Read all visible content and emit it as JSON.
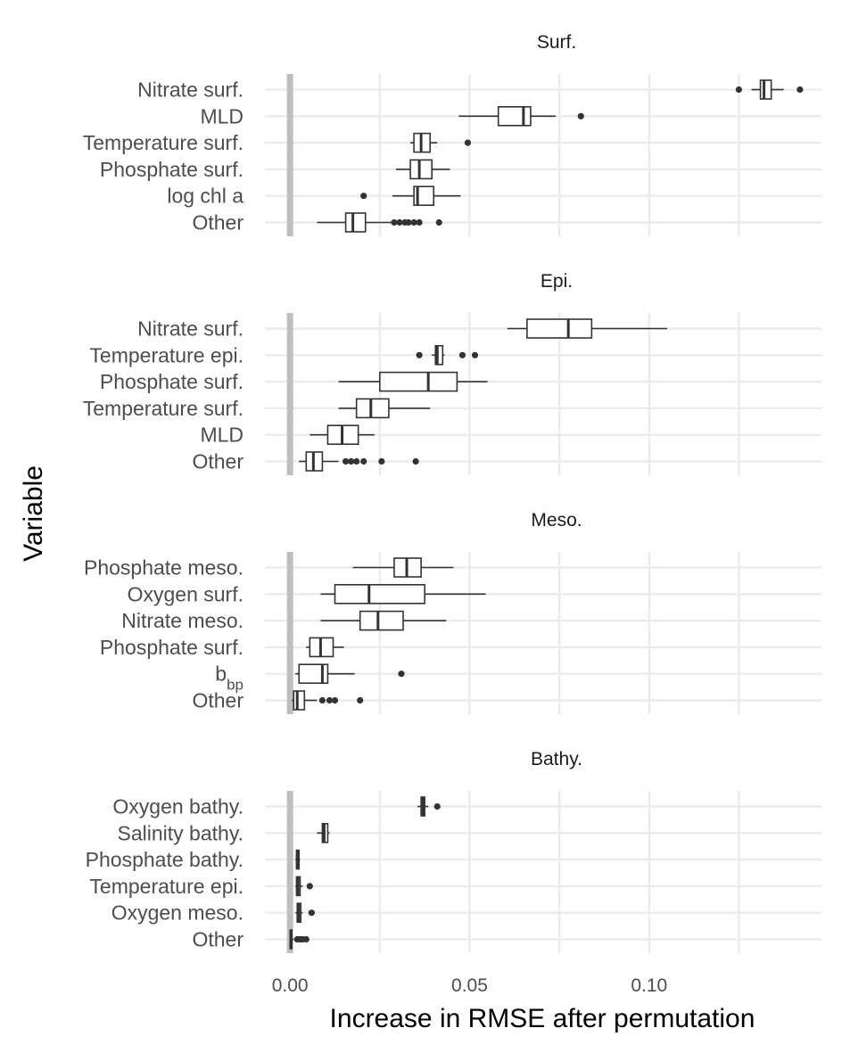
{
  "chart_data": {
    "type": "boxplot",
    "xlabel": "Increase in RMSE after permutation",
    "ylabel": "Variable",
    "xlim": [
      -0.007,
      0.148
    ],
    "x_ticks": [
      0.0,
      0.05,
      0.1
    ],
    "x_tick_labels": [
      "0.00",
      "0.05",
      "0.10"
    ],
    "grid": true,
    "reference_line": 0.0,
    "panels": [
      {
        "title": "Surf.",
        "variables": [
          {
            "label": "Nitrate surf.",
            "min": 0.1285,
            "q1": 0.131,
            "median": 0.132,
            "q3": 0.134,
            "max": 0.1375,
            "outliers": [
              0.125,
              0.142
            ]
          },
          {
            "label": "MLD",
            "min": 0.047,
            "q1": 0.058,
            "median": 0.065,
            "q3": 0.067,
            "max": 0.074,
            "outliers": [
              0.081
            ]
          },
          {
            "label": "Temperature surf.",
            "min": 0.0335,
            "q1": 0.0345,
            "median": 0.0365,
            "q3": 0.039,
            "max": 0.041,
            "outliers": [
              0.0495
            ]
          },
          {
            "label": "Phosphate surf.",
            "min": 0.0295,
            "q1": 0.0335,
            "median": 0.036,
            "q3": 0.0395,
            "max": 0.0445,
            "outliers": []
          },
          {
            "label": "log chl a",
            "min": 0.0285,
            "q1": 0.0345,
            "median": 0.0355,
            "q3": 0.04,
            "max": 0.0475,
            "outliers": [
              0.0205
            ]
          },
          {
            "label": "Other",
            "min": 0.0075,
            "q1": 0.0155,
            "median": 0.0175,
            "q3": 0.021,
            "max": 0.0285,
            "outliers": [
              0.029,
              0.0305,
              0.032,
              0.033,
              0.0345,
              0.036,
              0.0415
            ]
          }
        ]
      },
      {
        "title": "Epi.",
        "variables": [
          {
            "label": "Nitrate surf.",
            "min": 0.0605,
            "q1": 0.066,
            "median": 0.0775,
            "q3": 0.084,
            "max": 0.105,
            "outliers": []
          },
          {
            "label": "Temperature epi.",
            "min": 0.0395,
            "q1": 0.0405,
            "median": 0.041,
            "q3": 0.0425,
            "max": 0.043,
            "outliers": [
              0.036,
              0.048,
              0.0515
            ]
          },
          {
            "label": "Phosphate surf.",
            "min": 0.0135,
            "q1": 0.025,
            "median": 0.0385,
            "q3": 0.0465,
            "max": 0.055,
            "outliers": []
          },
          {
            "label": "Temperature surf.",
            "min": 0.0135,
            "q1": 0.0185,
            "median": 0.0225,
            "q3": 0.0275,
            "max": 0.039,
            "outliers": []
          },
          {
            "label": "MLD",
            "min": 0.0055,
            "q1": 0.0105,
            "median": 0.0145,
            "q3": 0.019,
            "max": 0.0235,
            "outliers": []
          },
          {
            "label": "Other",
            "min": 0.0025,
            "q1": 0.0045,
            "median": 0.0065,
            "q3": 0.009,
            "max": 0.0135,
            "outliers": [
              0.0155,
              0.017,
              0.0185,
              0.0205,
              0.0255,
              0.035
            ]
          }
        ]
      },
      {
        "title": "Meso.",
        "variables": [
          {
            "label": "Phosphate meso.",
            "min": 0.0175,
            "q1": 0.029,
            "median": 0.0325,
            "q3": 0.0365,
            "max": 0.0455,
            "outliers": []
          },
          {
            "label": "Oxygen surf.",
            "min": 0.0085,
            "q1": 0.0125,
            "median": 0.022,
            "q3": 0.0375,
            "max": 0.0545,
            "outliers": []
          },
          {
            "label": "Nitrate meso.",
            "min": 0.0085,
            "q1": 0.0195,
            "median": 0.0245,
            "q3": 0.0315,
            "max": 0.0435,
            "outliers": []
          },
          {
            "label": "Phosphate surf.",
            "min": 0.0045,
            "q1": 0.0055,
            "median": 0.0085,
            "q3": 0.012,
            "max": 0.015,
            "outliers": []
          },
          {
            "label": "b",
            "label_sub": "bp",
            "min": 0.0015,
            "q1": 0.0025,
            "median": 0.009,
            "q3": 0.0105,
            "max": 0.018,
            "outliers": [
              0.031
            ]
          },
          {
            "label": "Other",
            "min": 0.0005,
            "q1": 0.001,
            "median": 0.002,
            "q3": 0.004,
            "max": 0.0075,
            "outliers": [
              0.009,
              0.011,
              0.0125,
              0.0195
            ]
          }
        ]
      },
      {
        "title": "Bathy.",
        "variables": [
          {
            "label": "Oxygen bathy.",
            "min": 0.0355,
            "q1": 0.0365,
            "median": 0.037,
            "q3": 0.0375,
            "max": 0.0385,
            "outliers": [
              0.041
            ]
          },
          {
            "label": "Salinity bathy.",
            "min": 0.0075,
            "q1": 0.009,
            "median": 0.0095,
            "q3": 0.0105,
            "max": 0.011,
            "outliers": []
          },
          {
            "label": "Phosphate bathy.",
            "min": 0.0015,
            "q1": 0.0018,
            "median": 0.002,
            "q3": 0.0025,
            "max": 0.0028,
            "outliers": []
          },
          {
            "label": "Temperature epi.",
            "min": 0.0015,
            "q1": 0.0018,
            "median": 0.0022,
            "q3": 0.0028,
            "max": 0.0035,
            "outliers": [
              0.0055
            ]
          },
          {
            "label": "Oxygen meso.",
            "min": 0.0015,
            "q1": 0.002,
            "median": 0.0024,
            "q3": 0.003,
            "max": 0.0035,
            "outliers": [
              0.006
            ]
          },
          {
            "label": "Other",
            "min": 0.0,
            "q1": 0.0001,
            "median": 0.0002,
            "q3": 0.0005,
            "max": 0.001,
            "outliers": [
              0.002,
              0.0028,
              0.0035,
              0.0045
            ]
          }
        ]
      }
    ]
  },
  "colors": {
    "grid": "#ebebeb",
    "reference_line": "#bebebe",
    "box_stroke": "#333333",
    "box_fill": "#ffffff",
    "outlier": "#333333",
    "text": "#4d4d4d"
  }
}
